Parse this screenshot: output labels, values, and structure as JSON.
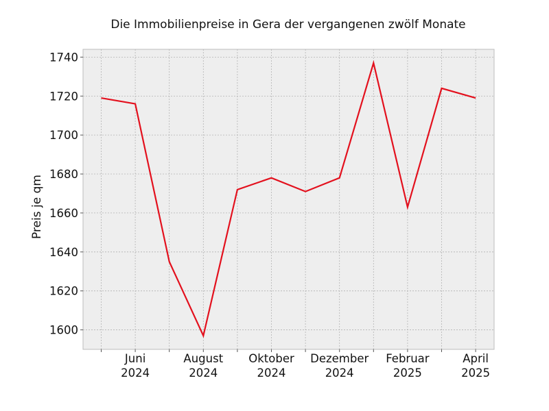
{
  "chart_data": {
    "type": "line",
    "title": "Die Immobilienpreise in Gera der vergangenen zwölf Monate",
    "xlabel": "",
    "ylabel": "Preis je qm",
    "ylim": [
      1590,
      1744
    ],
    "yticks": [
      1600,
      1620,
      1640,
      1660,
      1680,
      1700,
      1720,
      1740
    ],
    "xtick_labels": [
      {
        "month": "Juni",
        "year": "2024"
      },
      {
        "month": "August",
        "year": "2024"
      },
      {
        "month": "Oktober",
        "year": "2024"
      },
      {
        "month": "Dezember",
        "year": "2024"
      },
      {
        "month": "Februar",
        "year": "2025"
      },
      {
        "month": "April",
        "year": "2025"
      }
    ],
    "x": [
      "2024-05",
      "2024-06",
      "2024-07",
      "2024-08",
      "2024-09",
      "2024-10",
      "2024-11",
      "2024-12",
      "2025-01",
      "2025-02",
      "2025-03",
      "2025-04"
    ],
    "series": [
      {
        "color": "#e3101d",
        "values": [
          1719,
          1716,
          1635,
          1597,
          1672,
          1678,
          1671,
          1678,
          1737,
          1663,
          1724,
          1719
        ]
      }
    ],
    "grid": true
  }
}
